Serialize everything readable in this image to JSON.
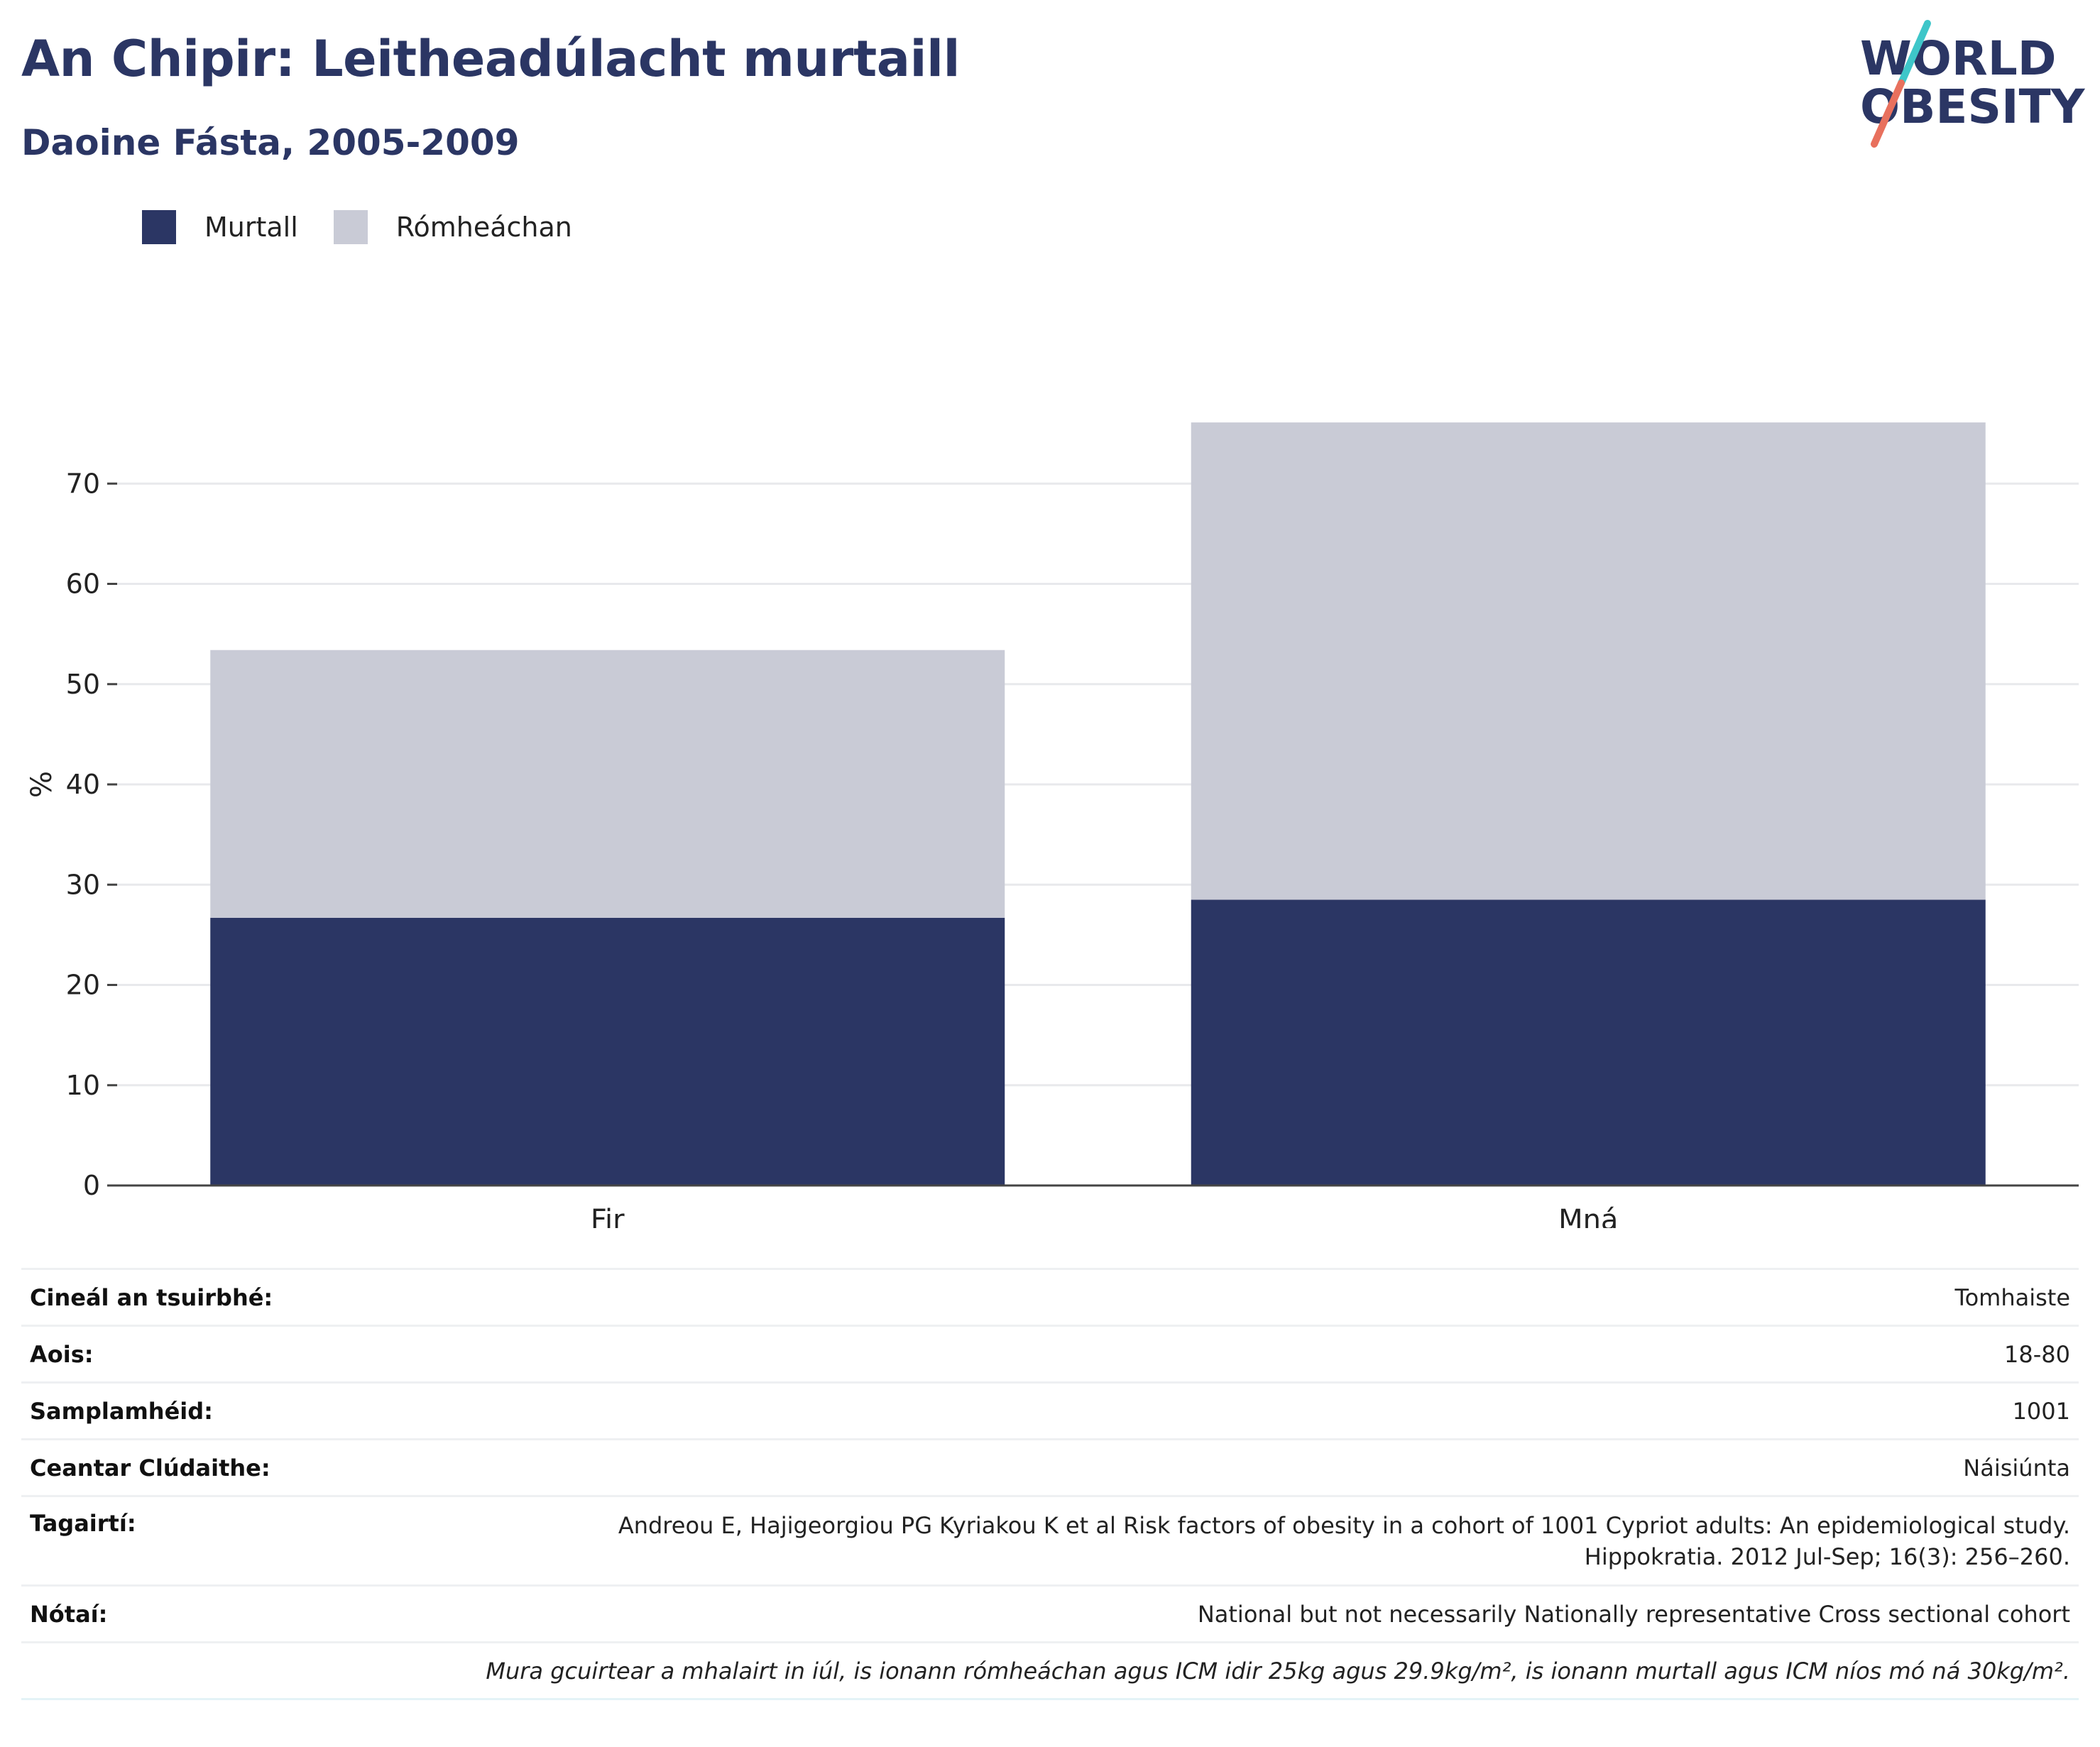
{
  "header": {
    "title": "An Chipir: Leitheadúlacht murtaill",
    "subtitle": "Daoine Fásta, 2005-2009"
  },
  "logo": {
    "line1": "WORLD",
    "line2": "OBESITY",
    "colors": {
      "text": "#2b3664",
      "slash_top": "#3ec6c9",
      "slash_bottom": "#e8705d"
    }
  },
  "legend": {
    "items": [
      {
        "label": "Murtall",
        "color": "#2b3664"
      },
      {
        "label": "Rómheáchan",
        "color": "#c9cbd6"
      }
    ]
  },
  "chart_data": {
    "type": "bar",
    "stacked": true,
    "categories": [
      "Fir",
      "Mná"
    ],
    "series": [
      {
        "name": "Murtall",
        "values": [
          26.7,
          28.5
        ],
        "color": "#2b3664"
      },
      {
        "name": "Rómheáchan",
        "values": [
          26.7,
          47.6
        ],
        "color": "#c9cbd6"
      }
    ],
    "ylabel": "%",
    "ylim": [
      0,
      80
    ],
    "yticks": [
      0,
      10,
      20,
      30,
      40,
      50,
      60,
      70
    ],
    "grid": true,
    "legend_position": "top-left"
  },
  "info": {
    "survey_type": {
      "label": "Cineál an tsuirbhé:",
      "value": "Tomhaiste"
    },
    "age": {
      "label": "Aois:",
      "value": "18-80"
    },
    "sample": {
      "label": "Samplamhéid:",
      "value": "1001"
    },
    "coverage": {
      "label": "Ceantar Clúdaithe:",
      "value": "Náisiúnta"
    },
    "references": {
      "label": "Tagairtí:",
      "line1": "Andreou E, Hajigeorgiou PG Kyriakou K et al Risk factors of obesity in a cohort of 1001 Cypriot adults: An epidemiological study.",
      "line2": "Hippokratia. 2012 Jul-Sep; 16(3): 256–260."
    },
    "notes": {
      "label": "Nótaí:",
      "value": "National but not necessarily Nationally representative Cross sectional cohort"
    },
    "footnote": "Mura gcuirtear a mhalairt in iúl, is ionann rómheáchan agus ICM idir 25kg agus 29.9kg/m², is ionann murtall agus ICM níos mó ná 30kg/m²."
  }
}
